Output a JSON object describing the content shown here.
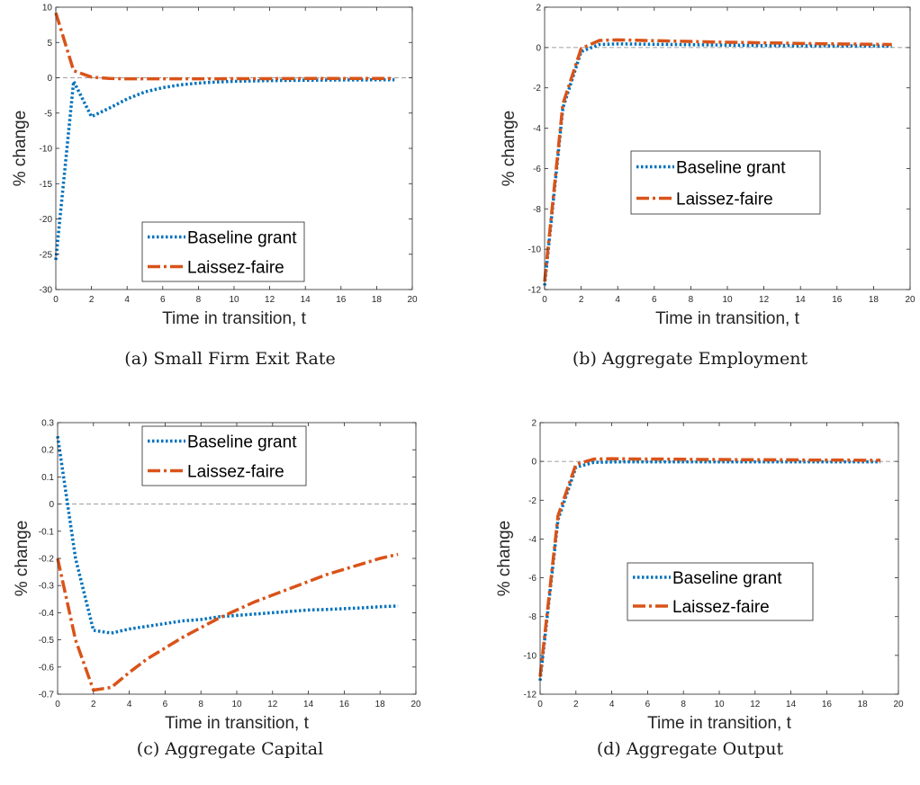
{
  "colors": {
    "baseline": "#0072BD",
    "laissez": "#D95319",
    "axis": "#262626",
    "zero_line": "#808080"
  },
  "chart_data": [
    {
      "type": "line",
      "caption": "(a) Small Firm Exit Rate",
      "xlabel": "Time in transition, t",
      "ylabel": "% change",
      "xlim": [
        0,
        20
      ],
      "ylim": [
        -30,
        10
      ],
      "xticks": [
        "0",
        "2",
        "4",
        "6",
        "8",
        "10",
        "12",
        "14",
        "16",
        "18",
        "20"
      ],
      "yticks": [
        "-30",
        "-25",
        "-20",
        "-15",
        "-10",
        "-5",
        "0",
        "5",
        "10"
      ],
      "legend_position": "bottom-center",
      "zero_line": true,
      "x": [
        0,
        1,
        2,
        3,
        4,
        5,
        6,
        7,
        8,
        9,
        10,
        11,
        12,
        13,
        14,
        15,
        16,
        17,
        18,
        19
      ],
      "series": [
        {
          "name": "Baseline grant",
          "style": "dotted",
          "values": [
            -25.8,
            -0.5,
            -5.5,
            -4.3,
            -3.0,
            -2.0,
            -1.4,
            -1.0,
            -0.75,
            -0.6,
            -0.5,
            -0.45,
            -0.4,
            -0.38,
            -0.35,
            -0.33,
            -0.31,
            -0.3,
            -0.29,
            -0.28
          ]
        },
        {
          "name": "Laissez-faire",
          "style": "dashdot",
          "values": [
            9.2,
            1.0,
            0.1,
            -0.1,
            -0.15,
            -0.15,
            -0.15,
            -0.15,
            -0.14,
            -0.14,
            -0.13,
            -0.12,
            -0.12,
            -0.11,
            -0.1,
            -0.1,
            -0.1,
            -0.09,
            -0.09,
            -0.09
          ]
        }
      ]
    },
    {
      "type": "line",
      "caption": "(b) Aggregate Employment",
      "xlabel": "Time in transition, t",
      "ylabel": "% change",
      "xlim": [
        0,
        20
      ],
      "ylim": [
        -12,
        2
      ],
      "xticks": [
        "0",
        "2",
        "4",
        "6",
        "8",
        "10",
        "12",
        "14",
        "16",
        "18",
        "20"
      ],
      "yticks": [
        "-12",
        "-10",
        "-8",
        "-6",
        "-4",
        "-2",
        "0",
        "2"
      ],
      "legend_position": "middle-center",
      "zero_line": true,
      "x": [
        0,
        1,
        2,
        3,
        4,
        5,
        6,
        7,
        8,
        9,
        10,
        11,
        12,
        13,
        14,
        15,
        16,
        17,
        18,
        19
      ],
      "series": [
        {
          "name": "Baseline grant",
          "style": "dotted",
          "values": [
            -11.8,
            -3.0,
            -0.2,
            0.15,
            0.18,
            0.17,
            0.16,
            0.15,
            0.14,
            0.13,
            0.12,
            0.11,
            0.1,
            0.1,
            0.09,
            0.09,
            0.08,
            0.08,
            0.08,
            0.07
          ]
        },
        {
          "name": "Laissez-faire",
          "style": "dashdot",
          "values": [
            -11.6,
            -2.8,
            -0.05,
            0.35,
            0.38,
            0.36,
            0.34,
            0.32,
            0.3,
            0.28,
            0.26,
            0.25,
            0.23,
            0.22,
            0.2,
            0.19,
            0.18,
            0.17,
            0.16,
            0.15
          ]
        }
      ]
    },
    {
      "type": "line",
      "caption": "(c) Aggregate Capital",
      "xlabel": "Time in transition, t",
      "ylabel": "% change",
      "xlim": [
        0,
        20
      ],
      "ylim": [
        -0.7,
        0.3
      ],
      "xticks": [
        "0",
        "2",
        "4",
        "6",
        "8",
        "10",
        "12",
        "14",
        "16",
        "18",
        "20"
      ],
      "yticks": [
        "-0.7",
        "-0.6",
        "-0.5",
        "-0.4",
        "-0.3",
        "-0.2",
        "-0.1",
        "0",
        "0.1",
        "0.2",
        "0.3"
      ],
      "legend_position": "top-center",
      "zero_line": true,
      "x": [
        0,
        1,
        2,
        3,
        4,
        5,
        6,
        7,
        8,
        9,
        10,
        11,
        12,
        13,
        14,
        15,
        16,
        17,
        18,
        19
      ],
      "series": [
        {
          "name": "Baseline grant",
          "style": "dotted",
          "values": [
            0.25,
            -0.2,
            -0.465,
            -0.475,
            -0.46,
            -0.45,
            -0.44,
            -0.43,
            -0.425,
            -0.415,
            -0.41,
            -0.405,
            -0.4,
            -0.395,
            -0.39,
            -0.388,
            -0.385,
            -0.382,
            -0.378,
            -0.375
          ]
        },
        {
          "name": "Laissez-faire",
          "style": "dashdot",
          "values": [
            -0.2,
            -0.5,
            -0.685,
            -0.675,
            -0.62,
            -0.57,
            -0.53,
            -0.49,
            -0.455,
            -0.42,
            -0.39,
            -0.36,
            -0.335,
            -0.31,
            -0.285,
            -0.26,
            -0.24,
            -0.22,
            -0.2,
            -0.185
          ]
        }
      ]
    },
    {
      "type": "line",
      "caption": "(d) Aggregate Output",
      "xlabel": "Time in transition, t",
      "ylabel": "% change",
      "xlim": [
        0,
        20
      ],
      "ylim": [
        -12,
        2
      ],
      "xticks": [
        "0",
        "2",
        "4",
        "6",
        "8",
        "10",
        "12",
        "14",
        "16",
        "18",
        "20"
      ],
      "yticks": [
        "-12",
        "-10",
        "-8",
        "-6",
        "-4",
        "-2",
        "0",
        "2"
      ],
      "legend_position": "middle-center",
      "zero_line": true,
      "x": [
        0,
        1,
        2,
        3,
        4,
        5,
        6,
        7,
        8,
        9,
        10,
        11,
        12,
        13,
        14,
        15,
        16,
        17,
        18,
        19
      ],
      "series": [
        {
          "name": "Baseline grant",
          "style": "dotted",
          "values": [
            -11.3,
            -3.0,
            -0.3,
            -0.05,
            -0.03,
            -0.02,
            -0.02,
            -0.02,
            -0.02,
            -0.02,
            -0.02,
            -0.02,
            -0.02,
            -0.02,
            -0.02,
            -0.02,
            -0.02,
            -0.02,
            -0.02,
            -0.02
          ]
        },
        {
          "name": "Laissez-faire",
          "style": "dashdot",
          "values": [
            -11.1,
            -2.8,
            -0.15,
            0.12,
            0.14,
            0.13,
            0.12,
            0.12,
            0.11,
            0.1,
            0.1,
            0.09,
            0.09,
            0.08,
            0.08,
            0.07,
            0.07,
            0.07,
            0.06,
            0.06
          ]
        }
      ]
    }
  ]
}
